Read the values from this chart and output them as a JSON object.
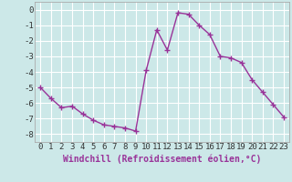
{
  "x": [
    0,
    1,
    2,
    3,
    4,
    5,
    6,
    7,
    8,
    9,
    10,
    11,
    12,
    13,
    14,
    15,
    16,
    17,
    18,
    19,
    20,
    21,
    22,
    23
  ],
  "y": [
    -5.0,
    -5.7,
    -6.3,
    -6.2,
    -6.7,
    -7.1,
    -7.4,
    -7.5,
    -7.6,
    -7.8,
    -3.9,
    -1.3,
    -2.6,
    -0.2,
    -0.3,
    -1.0,
    -1.6,
    -3.0,
    -3.1,
    -3.4,
    -4.5,
    -5.3,
    -6.1,
    -6.9
  ],
  "line_color": "#993399",
  "marker": "+",
  "markersize": 4,
  "linewidth": 1.0,
  "bg_color": "#cce8e8",
  "grid_color": "#ffffff",
  "xlabel": "Windchill (Refroidissement éolien,°C)",
  "xlabel_fontsize": 7,
  "tick_fontsize": 6.5,
  "xlim": [
    -0.5,
    23.5
  ],
  "ylim": [
    -8.5,
    0.5
  ],
  "yticks": [
    0,
    -1,
    -2,
    -3,
    -4,
    -5,
    -6,
    -7,
    -8
  ],
  "xticks": [
    0,
    1,
    2,
    3,
    4,
    5,
    6,
    7,
    8,
    9,
    10,
    11,
    12,
    13,
    14,
    15,
    16,
    17,
    18,
    19,
    20,
    21,
    22,
    23
  ]
}
